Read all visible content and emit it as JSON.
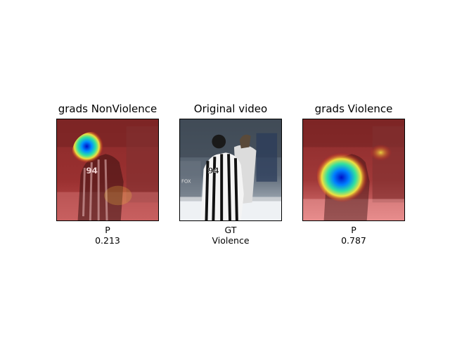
{
  "panels": [
    {
      "title": "grads NonViolence",
      "caption_top": "P",
      "caption_bottom": "0.213",
      "heatmap_focus": "upper-center (referee head/shoulder)"
    },
    {
      "title": "Original video",
      "caption_top": "GT",
      "caption_bottom": "Violence",
      "image": "hockey-referee-and-players"
    },
    {
      "title": "grads Violence",
      "caption_top": "P",
      "caption_bottom": "0.787",
      "heatmap_focus": "referee torso and player (center-left)"
    }
  ],
  "colors": {
    "background": "#ffffff",
    "heat_low": "#c00000",
    "heat_high": "#0000c8"
  }
}
